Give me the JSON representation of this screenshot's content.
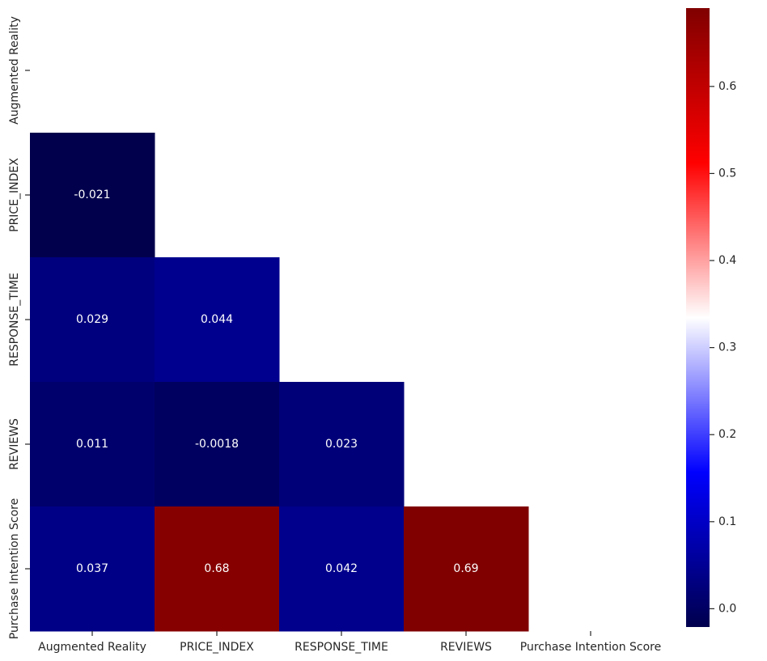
{
  "chart_data": {
    "type": "heatmap",
    "categories": [
      "Augmented Reality",
      "PRICE_INDEX",
      "RESPONSE_TIME",
      "REVIEWS",
      "Purchase Intention Score"
    ],
    "values": [
      [
        null,
        null,
        null,
        null,
        null
      ],
      [
        -0.021,
        null,
        null,
        null,
        null
      ],
      [
        0.029,
        0.044,
        null,
        null,
        null
      ],
      [
        0.011,
        -0.0018,
        0.023,
        null,
        null
      ],
      [
        0.037,
        0.68,
        0.042,
        0.69,
        null
      ]
    ],
    "colormap": [
      "#00004d",
      "#0000ff",
      "#ffffff",
      "#ff0000",
      "#800000"
    ],
    "colorlim": [
      -0.021,
      0.69
    ],
    "colorticks": [
      {
        "value": 0,
        "label": "0.0"
      },
      0.1,
      0.2,
      0.3,
      0.4,
      0.5,
      0.6
    ]
  }
}
